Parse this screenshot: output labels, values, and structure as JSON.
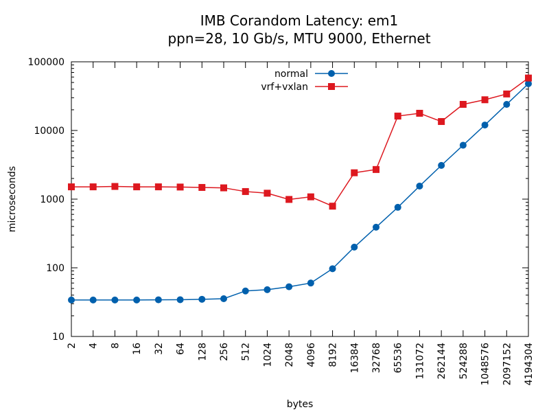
{
  "chart_data": {
    "type": "line",
    "title": "IMB Corandom Latency: em1",
    "subtitle": "ppn=28, 10 Gb/s, MTU 9000, Ethernet",
    "xlabel": "bytes",
    "ylabel": "microseconds",
    "x_scale": "log2",
    "y_scale": "log10",
    "xlim": [
      2,
      4194304
    ],
    "ylim": [
      10,
      100000
    ],
    "x_ticks": [
      "2",
      "4",
      "8",
      "16",
      "32",
      "64",
      "128",
      "256",
      "512",
      "1024",
      "2048",
      "4096",
      "8192",
      "16384",
      "32768",
      "65536",
      "131072",
      "262144",
      "524288",
      "1048576",
      "2097152",
      "4194304"
    ],
    "y_ticks": [
      "10",
      "100",
      "1000",
      "10000",
      "100000"
    ],
    "x": [
      2,
      4,
      8,
      16,
      32,
      64,
      128,
      256,
      512,
      1024,
      2048,
      4096,
      8192,
      16384,
      32768,
      65536,
      131072,
      262144,
      524288,
      1048576,
      2097152,
      4194304
    ],
    "legend_position": "top-center",
    "grid": false,
    "series": [
      {
        "name": "normal",
        "color": "#0060ad",
        "marker": "circle",
        "values": [
          34,
          34,
          34,
          34,
          34.2,
          34.3,
          34.8,
          35.5,
          46,
          48,
          53,
          60,
          97,
          200,
          390,
          760,
          1550,
          3100,
          6100,
          12000,
          24000,
          48000
        ]
      },
      {
        "name": "vrf+vxlan",
        "color": "#dd181f",
        "marker": "square",
        "values": [
          1510,
          1510,
          1530,
          1510,
          1510,
          1500,
          1480,
          1460,
          1290,
          1220,
          990,
          1080,
          790,
          2420,
          2700,
          16200,
          17800,
          13500,
          24000,
          28000,
          34000,
          58000
        ]
      }
    ]
  }
}
